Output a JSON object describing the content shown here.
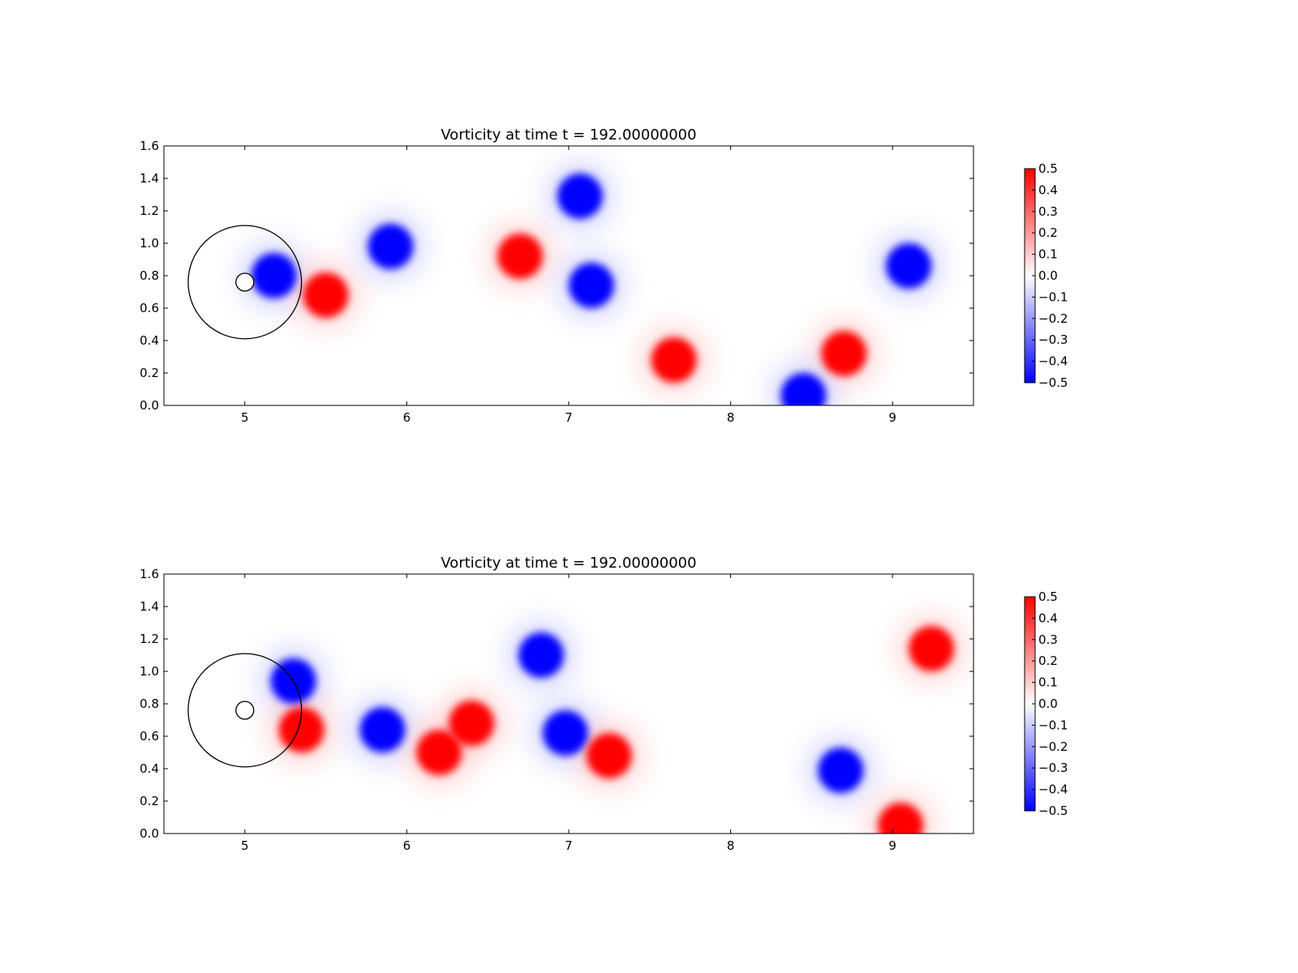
{
  "figure": {
    "background": "#ffffff"
  },
  "colormap": {
    "name": "bwr",
    "low": "#0000ff",
    "mid": "#ffffff",
    "high": "#ff0000"
  },
  "chart_data": [
    {
      "type": "heatmap",
      "title": "Vorticity at time t =   192.00000000",
      "xlim": [
        4.5,
        9.5
      ],
      "ylim": [
        0.0,
        1.6
      ],
      "xticks": [
        5,
        6,
        7,
        8,
        9
      ],
      "yticks": [
        0.0,
        0.2,
        0.4,
        0.6,
        0.8,
        1.0,
        1.2,
        1.4,
        1.6
      ],
      "xtick_labels": [
        "5",
        "6",
        "7",
        "8",
        "9"
      ],
      "ytick_labels": [
        "0.0",
        "0.2",
        "0.4",
        "0.6",
        "0.8",
        "1.0",
        "1.2",
        "1.4",
        "1.6"
      ],
      "colorbar": {
        "range": [
          -0.5,
          0.5
        ],
        "tick_labels": [
          "0.5",
          "0.4",
          "0.3",
          "0.2",
          "0.1",
          "0.0",
          "−0.1",
          "−0.2",
          "−0.3",
          "−0.4",
          "−0.5"
        ]
      },
      "cylinder": {
        "x": 5.0,
        "y": 0.76,
        "radius": 0.035
      },
      "reference_circle": {
        "x": 5.0,
        "y": 0.76,
        "radius": 0.35
      },
      "vortices": [
        {
          "x": 5.18,
          "y": 0.8,
          "sign": -1,
          "strength": 0.5
        },
        {
          "x": 5.5,
          "y": 0.68,
          "sign": 1,
          "strength": 0.5
        },
        {
          "x": 5.9,
          "y": 0.98,
          "sign": -1,
          "strength": 0.5
        },
        {
          "x": 6.7,
          "y": 0.92,
          "sign": 1,
          "strength": 0.5
        },
        {
          "x": 7.07,
          "y": 1.29,
          "sign": -1,
          "strength": 0.5
        },
        {
          "x": 7.14,
          "y": 0.74,
          "sign": -1,
          "strength": 0.5
        },
        {
          "x": 7.65,
          "y": 0.28,
          "sign": 1,
          "strength": 0.5
        },
        {
          "x": 8.7,
          "y": 0.32,
          "sign": 1,
          "strength": 0.5
        },
        {
          "x": 9.1,
          "y": 0.86,
          "sign": -1,
          "strength": 0.5
        },
        {
          "x": 8.45,
          "y": 0.06,
          "sign": -1,
          "strength": 0.5
        }
      ]
    },
    {
      "type": "heatmap",
      "title": "Vorticity at time t =   192.00000000",
      "xlim": [
        4.5,
        9.5
      ],
      "ylim": [
        0.0,
        1.6
      ],
      "xticks": [
        5,
        6,
        7,
        8,
        9
      ],
      "yticks": [
        0.0,
        0.2,
        0.4,
        0.6,
        0.8,
        1.0,
        1.2,
        1.4,
        1.6
      ],
      "xtick_labels": [
        "5",
        "6",
        "7",
        "8",
        "9"
      ],
      "ytick_labels": [
        "0.0",
        "0.2",
        "0.4",
        "0.6",
        "0.8",
        "1.0",
        "1.2",
        "1.4",
        "1.6"
      ],
      "colorbar": {
        "range": [
          -0.5,
          0.5
        ],
        "tick_labels": [
          "0.5",
          "0.4",
          "0.3",
          "0.2",
          "0.1",
          "0.0",
          "−0.1",
          "−0.2",
          "−0.3",
          "−0.4",
          "−0.5"
        ]
      },
      "cylinder": {
        "x": 5.0,
        "y": 0.76,
        "radius": 0.035
      },
      "reference_circle": {
        "x": 5.0,
        "y": 0.76,
        "radius": 0.35
      },
      "vortices": [
        {
          "x": 5.3,
          "y": 0.94,
          "sign": -1,
          "strength": 0.5
        },
        {
          "x": 5.35,
          "y": 0.64,
          "sign": 1,
          "strength": 0.5
        },
        {
          "x": 5.85,
          "y": 0.64,
          "sign": -1,
          "strength": 0.5
        },
        {
          "x": 6.2,
          "y": 0.5,
          "sign": 1,
          "strength": 0.5
        },
        {
          "x": 6.4,
          "y": 0.68,
          "sign": 1,
          "strength": 0.5
        },
        {
          "x": 6.83,
          "y": 1.1,
          "sign": -1,
          "strength": 0.5
        },
        {
          "x": 6.98,
          "y": 0.62,
          "sign": -1,
          "strength": 0.5
        },
        {
          "x": 7.25,
          "y": 0.48,
          "sign": 1,
          "strength": 0.5
        },
        {
          "x": 8.68,
          "y": 0.39,
          "sign": -1,
          "strength": 0.5
        },
        {
          "x": 9.24,
          "y": 1.14,
          "sign": 1,
          "strength": 0.5
        },
        {
          "x": 9.05,
          "y": 0.05,
          "sign": 1,
          "strength": 0.5
        }
      ]
    }
  ]
}
